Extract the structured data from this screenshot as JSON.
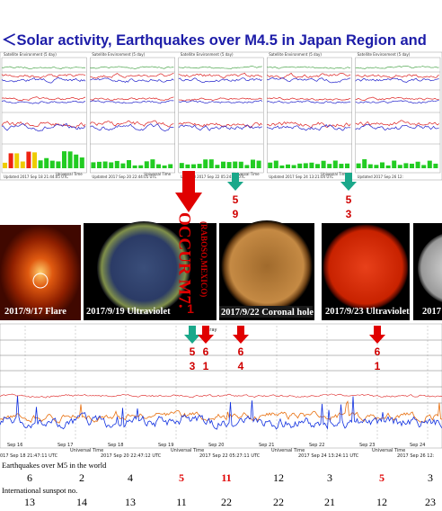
{
  "title": "＜Solar activity, Earthquakes over M4.5 in Japan Region and",
  "top_panel": {
    "headers": [
      "Satellite Environment (5 day)",
      "Satellite Environment (5 day)",
      "Satellite Environment (5 day)",
      "Satellite Environment (5 day)",
      "Satellite Environment (5 day)"
    ],
    "axis_titles": [
      "Universal Time",
      "Universal Time",
      "Universal Time",
      "Universal Time"
    ],
    "updated": [
      "Updated 2017 Sep 18 21:44:05 UTC",
      "Updated 2017 Sep 20 22:44:05 UTC",
      "Updated 2017 Sep 22 05:24:05 UTC",
      "Updated 2017 Sep 24 13:21:04 UTC",
      "Updated 2017 Sep 26 12:"
    ]
  },
  "event": {
    "main": "OCCUR M7.",
    "place": "(RABOSO,MEXICO)",
    "tail": "1"
  },
  "top_arrows": [
    {
      "labels": [
        "5",
        "9"
      ]
    },
    {
      "labels": [
        "5",
        "3"
      ]
    }
  ],
  "images": [
    {
      "caption": "2017/9/17 Flare"
    },
    {
      "caption": "2017/9/19 Ultraviolet"
    },
    {
      "caption": "2017/9/22 Coronal hole"
    },
    {
      "caption": "2017/9/23 Ultraviolet"
    },
    {
      "caption": "2017"
    }
  ],
  "lower_arrows": [
    {
      "labels": [
        "5",
        "3"
      ]
    },
    {
      "labels": [
        "6",
        "1"
      ]
    },
    {
      "labels": [
        "6",
        "4"
      ]
    },
    {
      "labels": [
        "6",
        "1"
      ]
    }
  ],
  "lower_panel": {
    "dates": [
      "Sep 16",
      "Sep 17",
      "Sep 18",
      "Sep 19",
      "Sep 20",
      "Sep 21",
      "Sep 22",
      "Sep 23",
      "Sep 24"
    ],
    "axis_titles": [
      "Universal Time",
      "Universal Time",
      "Universal Time",
      "Universal Time"
    ],
    "timestamps": [
      "017 Sep 18 21:47:11 UTC",
      "2017 Sep 20 22:47:12 UTC",
      "2017 Sep 22 05:27:11 UTC",
      "2017 Sep 24 13:24:11 UTC",
      "2017 Sep 26 12:"
    ],
    "xray": "Xray"
  },
  "earthquakes": {
    "label": "Earthquakes over M5 in the world",
    "values": [
      "6",
      "2",
      "4",
      "5",
      "11",
      "12",
      "3",
      "5",
      "3"
    ]
  },
  "sunspots": {
    "label": "International sunspot no.",
    "values": [
      "13",
      "14",
      "13",
      "11",
      "22",
      "22",
      "21",
      "12",
      "23"
    ]
  }
}
